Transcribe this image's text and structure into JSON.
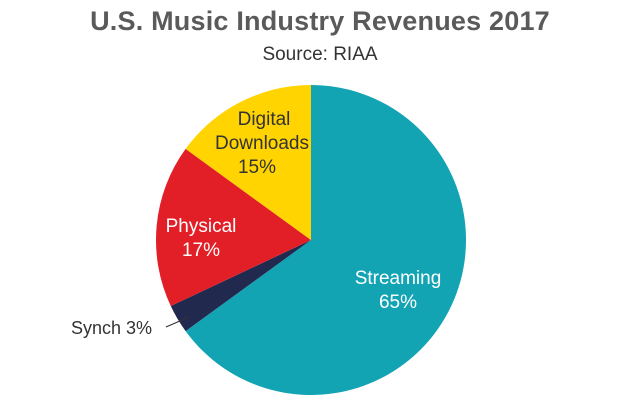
{
  "chart_data": {
    "type": "pie",
    "title": "U.S. Music Industry Revenues 2017",
    "subtitle": "Source: RIAA",
    "slices": [
      {
        "key": "streaming",
        "label": "Streaming",
        "value": 65,
        "value_text": "65%",
        "color": "#13a4b4"
      },
      {
        "key": "synch",
        "label": "Synch",
        "value": 3,
        "value_text": "3%",
        "color": "#22294f"
      },
      {
        "key": "physical",
        "label": "Physical",
        "value": 17,
        "value_text": "17%",
        "color": "#e21f26"
      },
      {
        "key": "digital",
        "label": "Digital Downloads",
        "value": 15,
        "value_text": "15%",
        "color": "#ffd400"
      }
    ]
  }
}
